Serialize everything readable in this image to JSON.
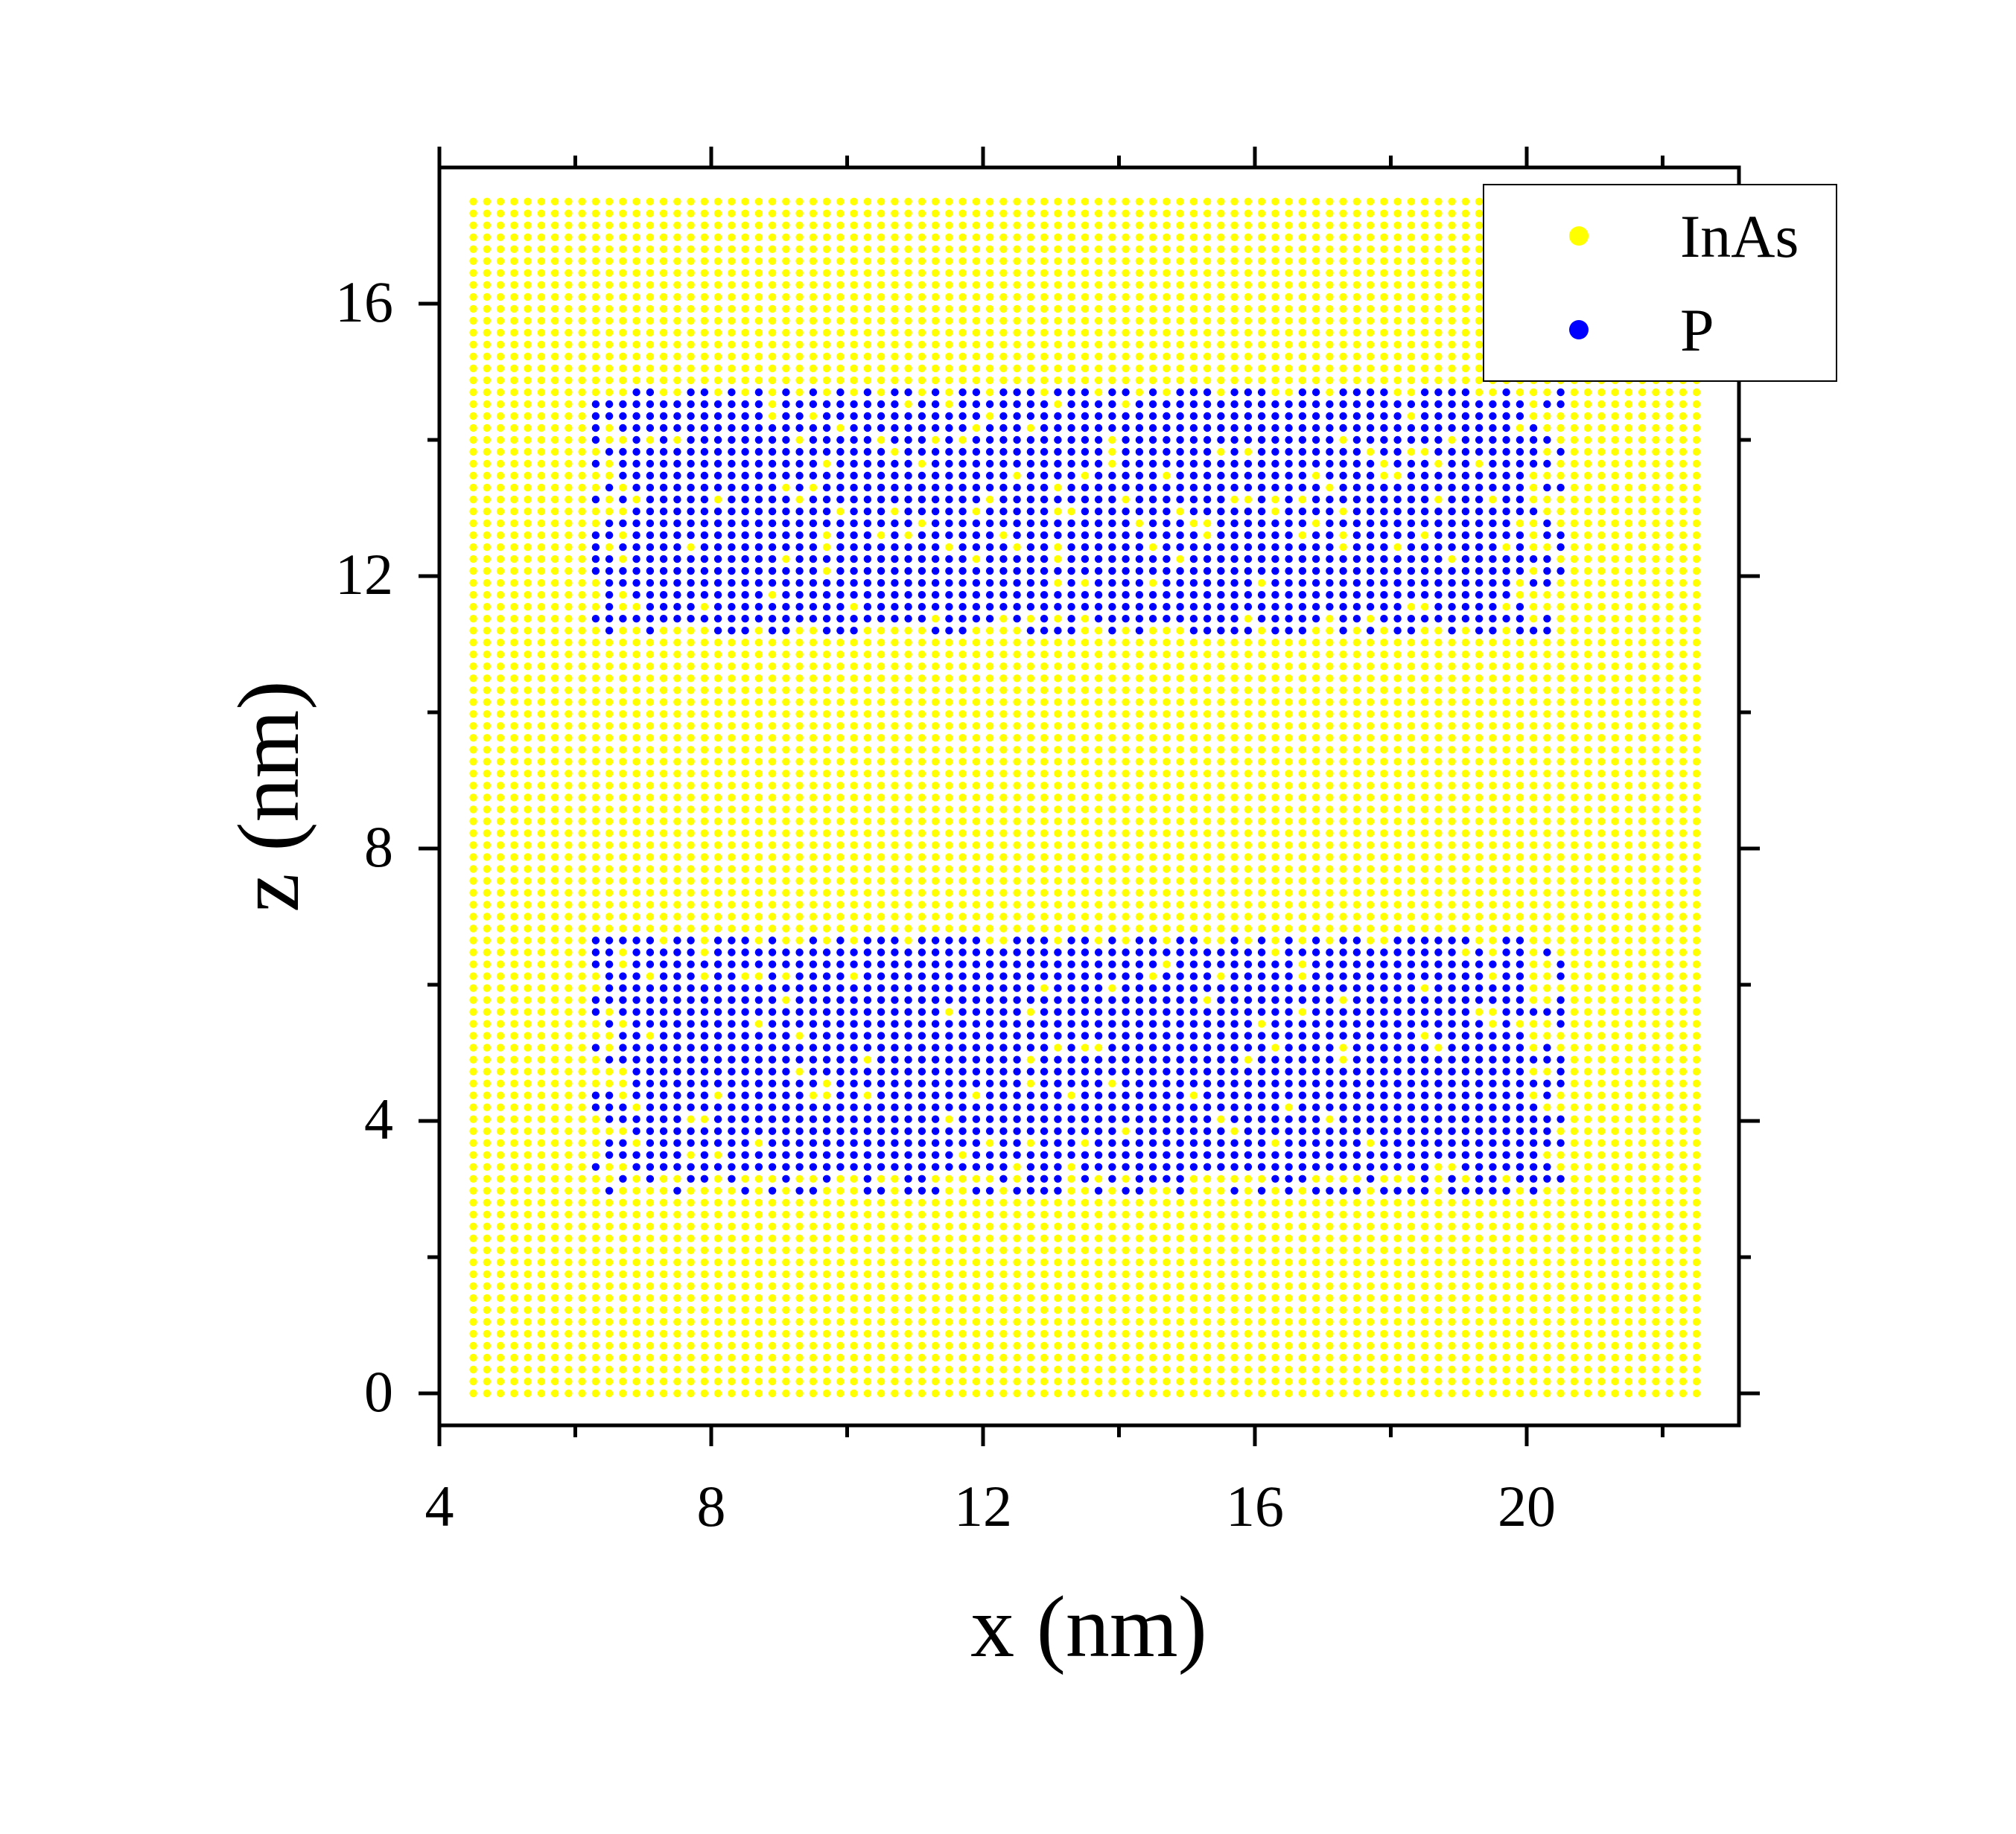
{
  "chart_data": {
    "type": "scatter",
    "xlabel": "x (nm)",
    "ylabel": "z (nm)",
    "xlim": [
      4,
      23
    ],
    "ylim": [
      -0.5,
      18
    ],
    "xticks": [
      "4",
      "8",
      "12",
      "16",
      "20"
    ],
    "yticks": [
      "0",
      "4",
      "8",
      "12",
      "16"
    ],
    "grid": false,
    "legend_position": "top-right",
    "series": [
      {
        "name": "InAs",
        "color": "#ffff00",
        "description_grid": {
          "x_start": 4.5,
          "x_end": 22.5,
          "x_step": 0.2,
          "z_start": 0.0,
          "z_end": 17.5,
          "z_step": 0.175
        }
      },
      {
        "name": "P",
        "color": "#0000ff",
        "regions": [
          {
            "x": [
              6.2,
              20.6
            ],
            "z": [
              2.95,
              6.7
            ]
          },
          {
            "x": [
              6.2,
              20.6
            ],
            "z": [
              11.05,
              14.8
            ]
          }
        ]
      }
    ]
  }
}
